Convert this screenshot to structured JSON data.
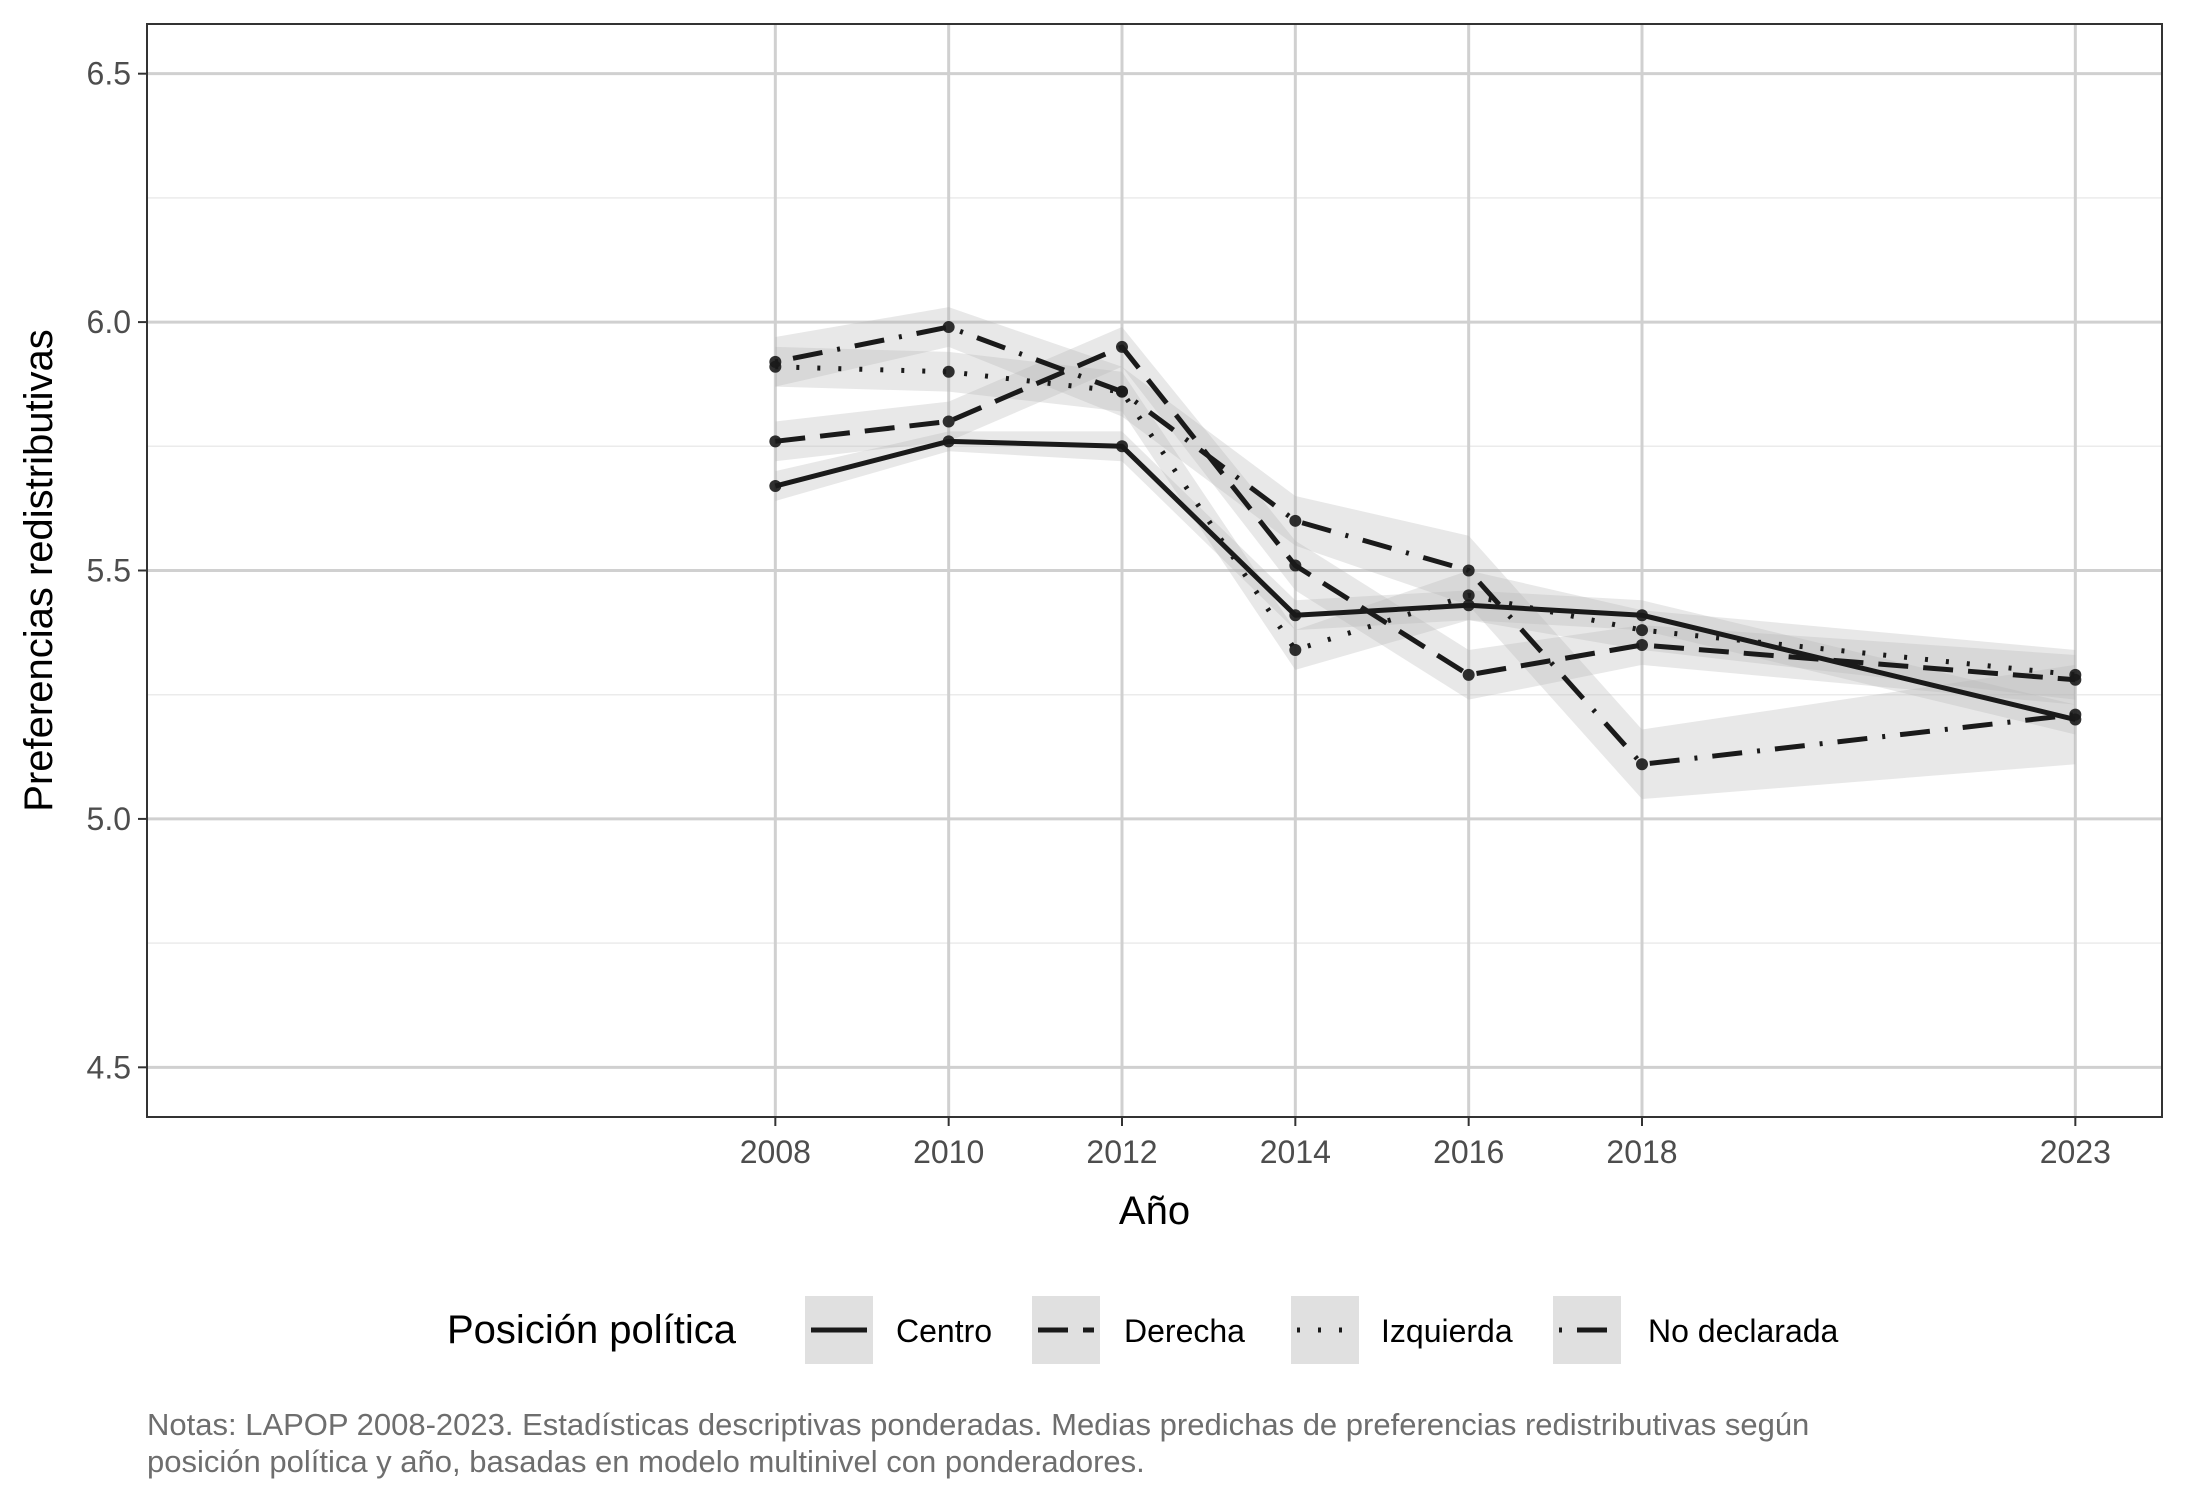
{
  "chart_data": {
    "type": "line",
    "xlabel": "Año",
    "ylabel": "Preferencias redistributivas",
    "x": [
      2008,
      2010,
      2012,
      2014,
      2016,
      2018,
      2023
    ],
    "x_ticks": [
      "2008",
      "2010",
      "2012",
      "2014",
      "2016",
      "2018",
      "2023"
    ],
    "xlim": [
      2000.75,
      2024
    ],
    "ylim": [
      4.4,
      6.6
    ],
    "y_ticks": [
      4.5,
      5.0,
      5.5,
      6.0,
      6.5
    ],
    "y_tick_labels": [
      "4.5",
      "5.0",
      "5.5",
      "6.0",
      "6.5"
    ],
    "grid": true,
    "confidence_bands": true,
    "legend_title": "Posición política",
    "legend_position": "bottom",
    "series": [
      {
        "name": "Centro",
        "linestyle": "solid",
        "values": [
          5.67,
          5.76,
          5.75,
          5.41,
          5.43,
          5.41,
          5.2
        ],
        "lower": [
          5.64,
          5.74,
          5.72,
          5.38,
          5.4,
          5.38,
          5.17
        ],
        "upper": [
          5.7,
          5.78,
          5.78,
          5.44,
          5.46,
          5.44,
          5.23
        ]
      },
      {
        "name": "Derecha",
        "linestyle": "dashed",
        "values": [
          5.76,
          5.8,
          5.95,
          5.51,
          5.29,
          5.35,
          5.28
        ],
        "lower": [
          5.72,
          5.76,
          5.91,
          5.46,
          5.24,
          5.31,
          5.23
        ],
        "upper": [
          5.8,
          5.84,
          5.99,
          5.56,
          5.34,
          5.39,
          5.33
        ]
      },
      {
        "name": "Izquierda",
        "linestyle": "dotted",
        "values": [
          5.91,
          5.9,
          5.86,
          5.34,
          5.45,
          5.38,
          5.29
        ],
        "lower": [
          5.87,
          5.86,
          5.82,
          5.3,
          5.4,
          5.34,
          5.24
        ],
        "upper": [
          5.95,
          5.94,
          5.9,
          5.38,
          5.5,
          5.42,
          5.34
        ]
      },
      {
        "name": "No declarada",
        "linestyle": "dotdash",
        "values": [
          5.92,
          5.99,
          5.86,
          5.6,
          5.5,
          5.11,
          5.21
        ],
        "lower": [
          5.87,
          5.95,
          5.81,
          5.55,
          5.43,
          5.04,
          5.11
        ],
        "upper": [
          5.97,
          6.03,
          5.91,
          5.65,
          5.57,
          5.18,
          5.31
        ]
      }
    ]
  },
  "notes": {
    "line1": "Notas: LAPOP 2008-2023. Estadísticas descriptivas ponderadas. Medias predichas de preferencias redistributivas según",
    "line2": "posición política y año, basadas en modelo multinivel con ponderadores."
  },
  "colors": {
    "line": "#1a1a1a",
    "band": "#b3b3b3",
    "grid_major": "#d0d0d0",
    "grid_minor": "#ebebeb",
    "legend_key_bg": "#e0e0e0",
    "panel_border": "#333333"
  }
}
